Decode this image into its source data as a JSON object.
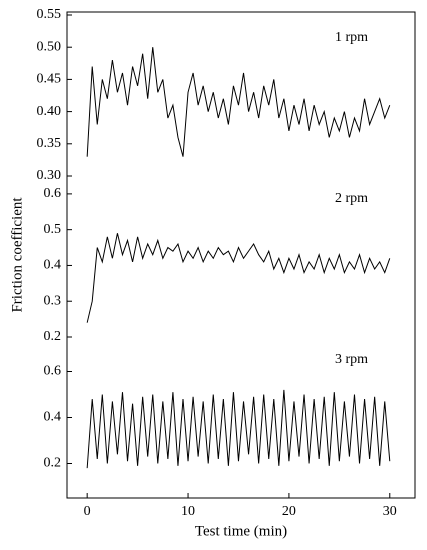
{
  "chart_data": [
    {
      "type": "line",
      "annotation": "1 rpm",
      "x": [
        0,
        0.5,
        1,
        1.5,
        2,
        2.5,
        3,
        3.5,
        4,
        4.5,
        5,
        5.5,
        6,
        6.5,
        7,
        7.5,
        8,
        8.5,
        9,
        9.5,
        10,
        10.5,
        11,
        11.5,
        12,
        12.5,
        13,
        13.5,
        14,
        14.5,
        15,
        15.5,
        16,
        16.5,
        17,
        17.5,
        18,
        18.5,
        19,
        19.5,
        20,
        20.5,
        21,
        21.5,
        22,
        22.5,
        23,
        23.5,
        24,
        24.5,
        25,
        25.5,
        26,
        26.5,
        27,
        27.5,
        28,
        28.5,
        29,
        29.5,
        30
      ],
      "series": [
        {
          "name": "1 rpm",
          "color": "#000000",
          "values": [
            0.33,
            0.47,
            0.38,
            0.45,
            0.42,
            0.48,
            0.43,
            0.46,
            0.41,
            0.47,
            0.44,
            0.49,
            0.42,
            0.5,
            0.43,
            0.45,
            0.39,
            0.41,
            0.36,
            0.33,
            0.43,
            0.46,
            0.41,
            0.44,
            0.4,
            0.43,
            0.39,
            0.42,
            0.38,
            0.44,
            0.41,
            0.46,
            0.4,
            0.43,
            0.39,
            0.44,
            0.41,
            0.45,
            0.39,
            0.42,
            0.37,
            0.41,
            0.38,
            0.42,
            0.37,
            0.41,
            0.38,
            0.4,
            0.36,
            0.39,
            0.37,
            0.4,
            0.36,
            0.39,
            0.37,
            0.42,
            0.38,
            0.4,
            0.42,
            0.39,
            0.41
          ]
        }
      ],
      "xlim": [
        -2,
        32.5
      ],
      "ylim": [
        0.3,
        0.55
      ],
      "yticks": [
        0.55,
        {
          "value": 0.5,
          "label": "0.50"
        },
        0.45,
        {
          "value": 0.4,
          "label": "0.40"
        },
        0.35,
        {
          "value": 0.3,
          "label": "0.30"
        }
      ]
    },
    {
      "type": "line",
      "annotation": "2 rpm",
      "y_label": "Friction coefficient",
      "x": [
        0,
        0.5,
        1,
        1.5,
        2,
        2.5,
        3,
        3.5,
        4,
        4.5,
        5,
        5.5,
        6,
        6.5,
        7,
        7.5,
        8,
        8.5,
        9,
        9.5,
        10,
        10.5,
        11,
        11.5,
        12,
        12.5,
        13,
        13.5,
        14,
        14.5,
        15,
        15.5,
        16,
        16.5,
        17,
        17.5,
        18,
        18.5,
        19,
        19.5,
        20,
        20.5,
        21,
        21.5,
        22,
        22.5,
        23,
        23.5,
        24,
        24.5,
        25,
        25.5,
        26,
        26.5,
        27,
        27.5,
        28,
        28.5,
        29,
        29.5,
        30
      ],
      "series": [
        {
          "name": "2 rpm",
          "color": "#000000",
          "values": [
            0.24,
            0.3,
            0.45,
            0.41,
            0.48,
            0.42,
            0.49,
            0.43,
            0.47,
            0.41,
            0.48,
            0.42,
            0.46,
            0.43,
            0.47,
            0.42,
            0.45,
            0.44,
            0.46,
            0.41,
            0.44,
            0.42,
            0.45,
            0.41,
            0.44,
            0.42,
            0.45,
            0.43,
            0.44,
            0.41,
            0.45,
            0.42,
            0.44,
            0.46,
            0.43,
            0.41,
            0.44,
            0.39,
            0.42,
            0.38,
            0.42,
            0.39,
            0.43,
            0.38,
            0.41,
            0.39,
            0.43,
            0.38,
            0.42,
            0.39,
            0.43,
            0.38,
            0.41,
            0.39,
            0.43,
            0.38,
            0.42,
            0.39,
            0.41,
            0.38,
            0.42
          ]
        }
      ],
      "xlim": [
        -2,
        32.5
      ],
      "ylim": [
        0.2,
        0.65
      ],
      "yticks": [
        0.6,
        0.5,
        0.4,
        0.3,
        0.2
      ]
    },
    {
      "type": "line",
      "annotation": "3 rpm",
      "x_label": "Test time (min)",
      "x": [
        0,
        0.5,
        1,
        1.5,
        2,
        2.5,
        3,
        3.5,
        4,
        4.5,
        5,
        5.5,
        6,
        6.5,
        7,
        7.5,
        8,
        8.5,
        9,
        9.5,
        10,
        10.5,
        11,
        11.5,
        12,
        12.5,
        13,
        13.5,
        14,
        14.5,
        15,
        15.5,
        16,
        16.5,
        17,
        17.5,
        18,
        18.5,
        19,
        19.5,
        20,
        20.5,
        21,
        21.5,
        22,
        22.5,
        23,
        23.5,
        24,
        24.5,
        25,
        25.5,
        26,
        26.5,
        27,
        27.5,
        28,
        28.5,
        29,
        29.5,
        30
      ],
      "series": [
        {
          "name": "3 rpm",
          "color": "#000000",
          "values": [
            0.18,
            0.48,
            0.22,
            0.5,
            0.2,
            0.47,
            0.24,
            0.51,
            0.21,
            0.46,
            0.19,
            0.49,
            0.23,
            0.5,
            0.2,
            0.47,
            0.22,
            0.51,
            0.19,
            0.48,
            0.21,
            0.49,
            0.23,
            0.47,
            0.2,
            0.5,
            0.22,
            0.48,
            0.19,
            0.51,
            0.21,
            0.47,
            0.24,
            0.49,
            0.2,
            0.5,
            0.22,
            0.48,
            0.19,
            0.52,
            0.21,
            0.47,
            0.23,
            0.5,
            0.2,
            0.48,
            0.22,
            0.49,
            0.19,
            0.51,
            0.21,
            0.47,
            0.23,
            0.5,
            0.2,
            0.48,
            0.22,
            0.49,
            0.19,
            0.47,
            0.21
          ]
        }
      ],
      "xlim": [
        -2,
        32.5
      ],
      "ylim": [
        0.05,
        0.75
      ],
      "xticks": [
        0,
        10,
        20,
        30
      ],
      "yticks": [
        0.6,
        0.4,
        0.2
      ]
    }
  ]
}
